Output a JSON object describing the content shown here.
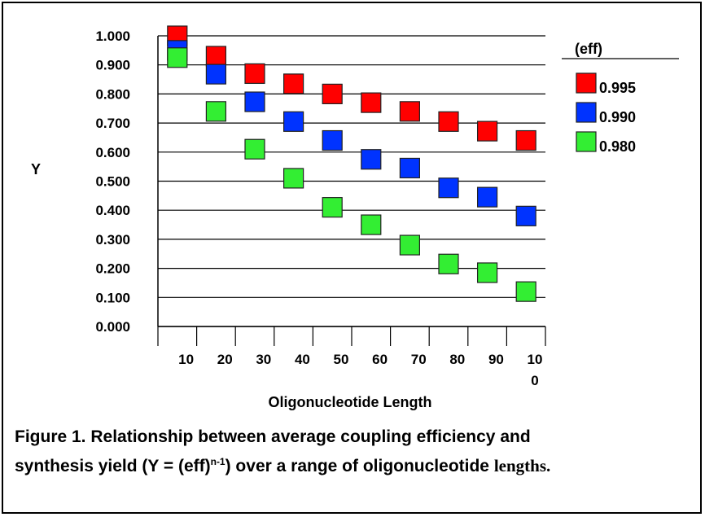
{
  "chart_data": {
    "type": "scatter",
    "title": "",
    "xlabel": "Oligonucleotide Length",
    "ylabel": "Y",
    "ylim": [
      0,
      1
    ],
    "y_ticks": [
      "1.000",
      "0.900",
      "0.800",
      "0.700",
      "0.600",
      "0.500",
      "0.400",
      "0.300",
      "0.200",
      "0.100",
      "0.000"
    ],
    "x_ticks": [
      "10",
      "20",
      "30",
      "40",
      "50",
      "60",
      "70",
      "80",
      "90",
      "10\n0"
    ],
    "x": [
      5,
      15,
      25,
      35,
      45,
      55,
      65,
      75,
      85,
      95
    ],
    "grid": true,
    "legend": {
      "title": "(eff)",
      "position": "right"
    },
    "series": [
      {
        "name": "0.995",
        "color": "#ff0000",
        "values": [
          1.0,
          0.93,
          0.87,
          0.835,
          0.8,
          0.77,
          0.74,
          0.705,
          0.672,
          0.64
        ]
      },
      {
        "name": "0.990",
        "color": "#0033ff",
        "values": [
          0.95,
          0.868,
          0.773,
          0.705,
          0.64,
          0.575,
          0.545,
          0.477,
          0.445,
          0.38
        ]
      },
      {
        "name": "0.980",
        "color": "#33ee33",
        "values": [
          0.925,
          0.74,
          0.61,
          0.51,
          0.41,
          0.35,
          0.28,
          0.215,
          0.185,
          0.12
        ]
      }
    ]
  },
  "caption": {
    "line1": "Figure 1.  Relationship between average coupling efficiency and",
    "line2_a": "synthesis yield (Y = (eff)",
    "line2_sup": "n-1",
    "line2_b": ") over a range of oligonucleotide ",
    "line2_c": "lengths."
  }
}
